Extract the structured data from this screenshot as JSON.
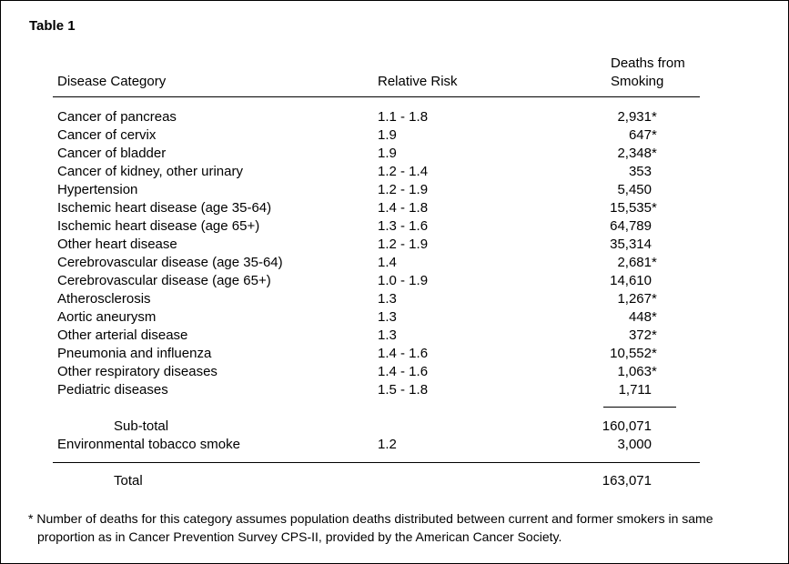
{
  "table": {
    "title": "Table 1",
    "headers": {
      "category": "Disease Category",
      "risk": "Relative Risk",
      "deaths_line1": "Deaths from",
      "deaths_line2": "Smoking"
    },
    "rows": [
      {
        "category": "Cancer of pancreas",
        "risk": "1.1 - 1.8",
        "deaths": "2,931",
        "star": "*"
      },
      {
        "category": "Cancer of cervix",
        "risk": "1.9",
        "deaths": "647",
        "star": "*"
      },
      {
        "category": "Cancer of bladder",
        "risk": "1.9",
        "deaths": "2,348",
        "star": "*"
      },
      {
        "category": "Cancer of kidney, other urinary",
        "risk": "1.2 - 1.4",
        "deaths": "353",
        "star": ""
      },
      {
        "category": "Hypertension",
        "risk": "1.2 - 1.9",
        "deaths": "5,450",
        "star": ""
      },
      {
        "category": "Ischemic heart disease (age 35-64)",
        "risk": "1.4 - 1.8",
        "deaths": "15,535",
        "star": "*"
      },
      {
        "category": "Ischemic heart disease (age 65+)",
        "risk": "1.3 - 1.6",
        "deaths": "64,789",
        "star": ""
      },
      {
        "category": "Other heart disease",
        "risk": "1.2 - 1.9",
        "deaths": "35,314",
        "star": ""
      },
      {
        "category": "Cerebrovascular disease (age 35-64)",
        "risk": "1.4",
        "deaths": "2,681",
        "star": "*"
      },
      {
        "category": "Cerebrovascular disease (age 65+)",
        "risk": "1.0 - 1.9",
        "deaths": "14,610",
        "star": ""
      },
      {
        "category": "Atherosclerosis",
        "risk": "1.3",
        "deaths": "1,267",
        "star": "*"
      },
      {
        "category": "Aortic aneurysm",
        "risk": "1.3",
        "deaths": "448",
        "star": "*"
      },
      {
        "category": "Other arterial disease",
        "risk": "1.3",
        "deaths": "372",
        "star": "*"
      },
      {
        "category": "Pneumonia and influenza",
        "risk": "1.4 - 1.6",
        "deaths": "10,552",
        "star": "*"
      },
      {
        "category": "Other respiratory diseases",
        "risk": "1.4 - 1.6",
        "deaths": "1,063",
        "star": "*"
      },
      {
        "category": "Pediatric diseases",
        "risk": "1.5 - 1.8",
        "deaths": "1,711",
        "star": ""
      }
    ],
    "subtotal": {
      "label": "Sub-total",
      "deaths": "160,071"
    },
    "ets": {
      "category": "Environmental tobacco smoke",
      "risk": "1.2",
      "deaths": "3,000"
    },
    "total": {
      "label": "Total",
      "deaths": "163,071"
    },
    "footnote": {
      "line1": "* Number of deaths for this category assumes population deaths distributed between current and former smokers in same",
      "line2": "proportion as in Cancer Prevention Survey CPS-II, provided by the American Cancer Society."
    }
  }
}
